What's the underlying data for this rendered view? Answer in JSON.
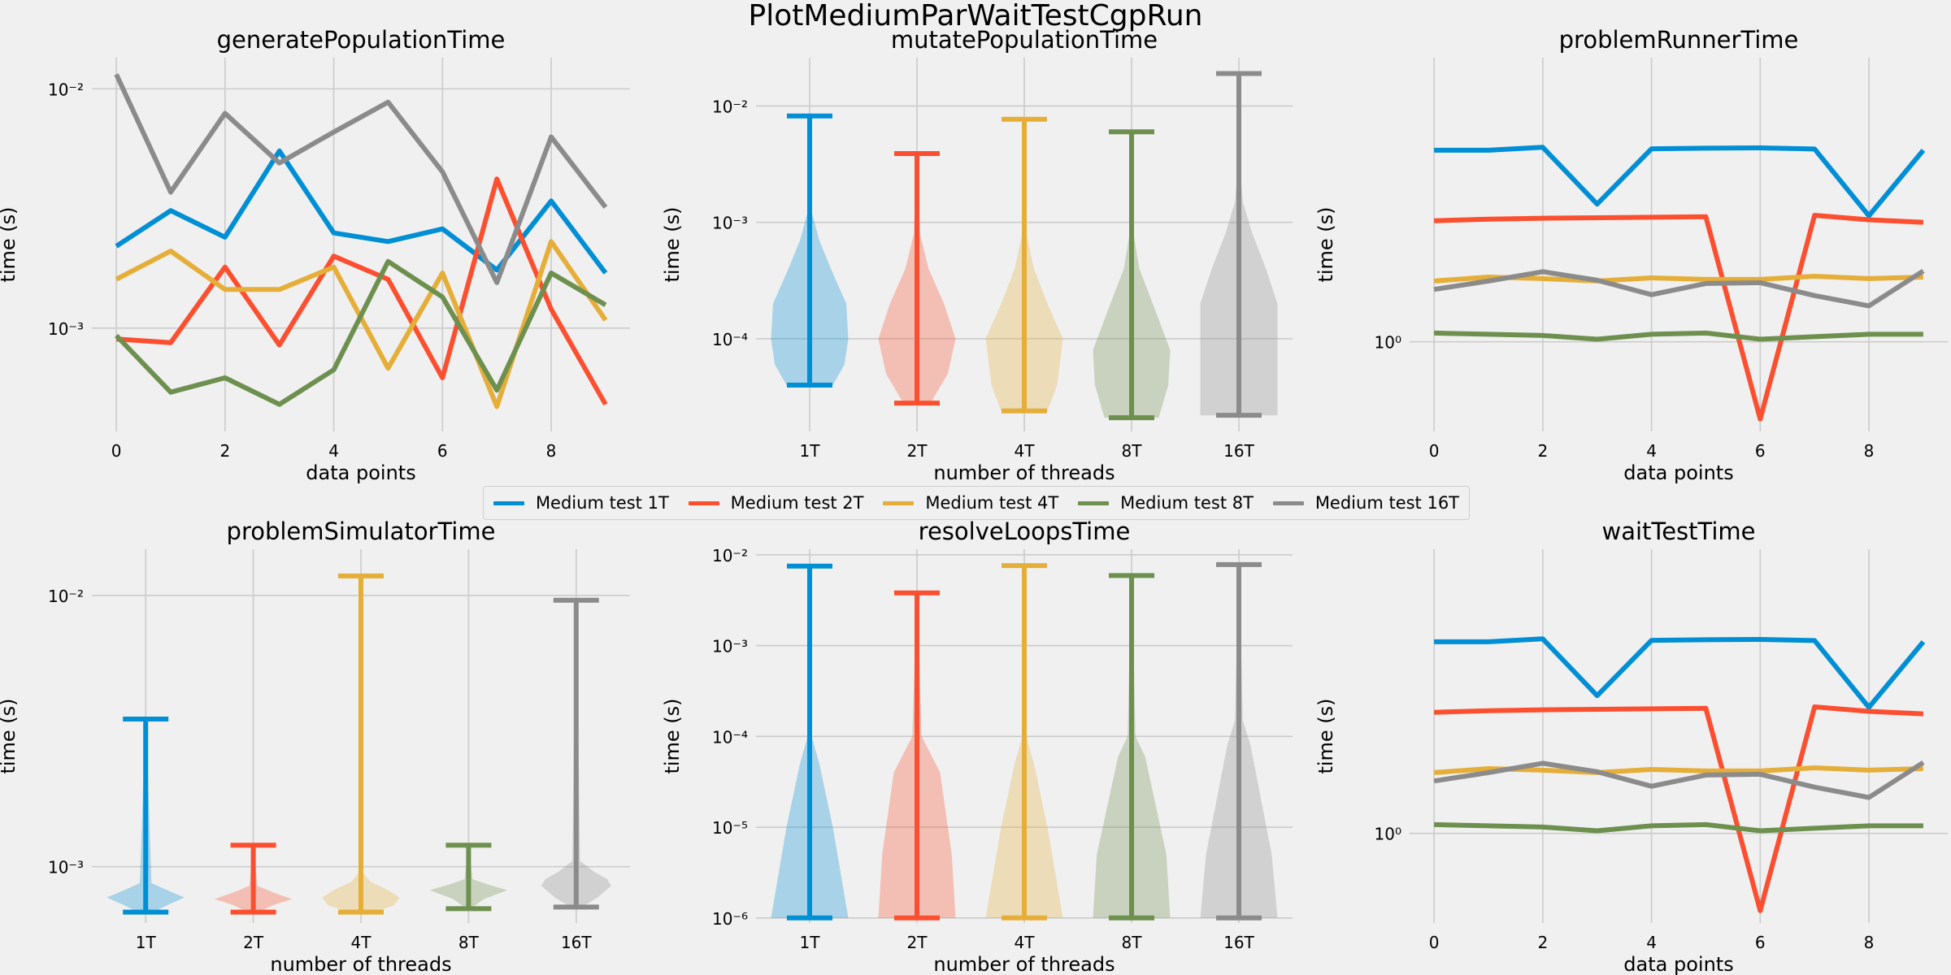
{
  "figure": {
    "suptitle": "PlotMediumParWaitTestCgpRun"
  },
  "series_names": [
    "Medium test 1T",
    "Medium test 2T",
    "Medium test 4T",
    "Medium test 8T",
    "Medium test 16T"
  ],
  "series_colors": [
    "#008fd5",
    "#fc4f30",
    "#e5ae38",
    "#6d904f",
    "#8b8b8b"
  ],
  "chart_data": [
    {
      "id": "generatePopulationTime",
      "type": "line",
      "title": "generatePopulationTime",
      "xlabel": "data points",
      "ylabel": "time (s)",
      "x": [
        0,
        1,
        2,
        3,
        4,
        5,
        6,
        7,
        8,
        9
      ],
      "xticks": [
        0,
        2,
        4,
        6,
        8
      ],
      "xticklabels": [
        "0",
        "2",
        "4",
        "6",
        "8"
      ],
      "xlim": [
        -0.45,
        9.45
      ],
      "yscale": "log",
      "ylim": [
        0.00037,
        0.0135
      ],
      "yticks": [
        0.001,
        0.01
      ],
      "yticklabels": [
        "10⁻³",
        "10⁻²"
      ],
      "series": [
        {
          "name": "Medium test 1T",
          "values": [
            0.0022,
            0.0031,
            0.0024,
            0.0055,
            0.0025,
            0.0023,
            0.0026,
            0.00175,
            0.0034,
            0.0017
          ]
        },
        {
          "name": "Medium test 2T",
          "values": [
            0.0009,
            0.00087,
            0.0018,
            0.00085,
            0.002,
            0.0016,
            0.00062,
            0.0042,
            0.0012,
            0.00048
          ]
        },
        {
          "name": "Medium test 4T",
          "values": [
            0.0016,
            0.0021,
            0.00145,
            0.00145,
            0.0018,
            0.00068,
            0.0017,
            0.00047,
            0.0023,
            0.00108
          ]
        },
        {
          "name": "Medium test 8T",
          "values": [
            0.00093,
            0.00054,
            0.00062,
            0.00048,
            0.00067,
            0.0019,
            0.00135,
            0.00055,
            0.0017,
            0.00125
          ]
        },
        {
          "name": "Medium test 16T",
          "values": [
            0.0115,
            0.0037,
            0.0079,
            0.0049,
            0.0066,
            0.0088,
            0.0045,
            0.00155,
            0.0063,
            0.0032
          ]
        }
      ]
    },
    {
      "id": "mutatePopulationTime",
      "type": "violin",
      "title": "mutatePopulationTime",
      "xlabel": "number of threads",
      "ylabel": "time (s)",
      "categories": [
        "1T",
        "2T",
        "4T",
        "8T",
        "16T"
      ],
      "yscale": "log",
      "ylim": [
        1.6e-05,
        0.026
      ],
      "yticks": [
        0.0001,
        0.001,
        0.01
      ],
      "yticklabels": [
        "10⁻⁴",
        "10⁻³",
        "10⁻²"
      ],
      "series": [
        {
          "name": "Medium test 1T",
          "min": 4e-05,
          "max": 0.0082,
          "profile": [
            [
              4e-05,
              0.6
            ],
            [
              6e-05,
              0.9
            ],
            [
              0.0001,
              1.0
            ],
            [
              0.0002,
              0.95
            ],
            [
              0.0004,
              0.55
            ],
            [
              0.0007,
              0.25
            ],
            [
              0.0012,
              0.06
            ],
            [
              0.0082,
              0.01
            ]
          ]
        },
        {
          "name": "Medium test 2T",
          "min": 2.8e-05,
          "max": 0.0039,
          "profile": [
            [
              2.8e-05,
              0.35
            ],
            [
              5e-05,
              0.8
            ],
            [
              0.0001,
              1.0
            ],
            [
              0.0002,
              0.7
            ],
            [
              0.0004,
              0.3
            ],
            [
              0.0008,
              0.08
            ],
            [
              0.0039,
              0.01
            ]
          ]
        },
        {
          "name": "Medium test 4T",
          "min": 2.4e-05,
          "max": 0.0077,
          "profile": [
            [
              2.4e-05,
              0.6
            ],
            [
              4e-05,
              0.85
            ],
            [
              0.0001,
              1.0
            ],
            [
              0.0002,
              0.6
            ],
            [
              0.0004,
              0.25
            ],
            [
              0.0008,
              0.05
            ],
            [
              0.0077,
              0.01
            ]
          ]
        },
        {
          "name": "Medium test 8T",
          "min": 2.1e-05,
          "max": 0.006,
          "profile": [
            [
              2.1e-05,
              0.7
            ],
            [
              4e-05,
              0.95
            ],
            [
              8e-05,
              1.0
            ],
            [
              0.0002,
              0.55
            ],
            [
              0.0004,
              0.2
            ],
            [
              0.0008,
              0.05
            ],
            [
              0.006,
              0.01
            ]
          ]
        },
        {
          "name": "Medium test 16T",
          "min": 2.2e-05,
          "max": 0.019,
          "profile": [
            [
              2.2e-05,
              1.0
            ],
            [
              0.0002,
              1.0
            ],
            [
              0.0004,
              0.7
            ],
            [
              0.0008,
              0.35
            ],
            [
              0.0015,
              0.1
            ],
            [
              0.003,
              0.03
            ],
            [
              0.019,
              0.01
            ]
          ]
        }
      ]
    },
    {
      "id": "problemRunnerTime",
      "type": "line",
      "title": "problemRunnerTime",
      "xlabel": "data points",
      "ylabel": "time (s)",
      "x": [
        0,
        1,
        2,
        3,
        4,
        5,
        6,
        7,
        8,
        9
      ],
      "xticks": [
        0,
        2,
        4,
        6,
        8
      ],
      "xticklabels": [
        "0",
        "2",
        "4",
        "6",
        "8"
      ],
      "xlim": [
        -0.45,
        9.45
      ],
      "yscale": "log",
      "ylim": [
        0.5,
        9.0
      ],
      "yticks": [
        1
      ],
      "yticklabels": [
        "10⁰"
      ],
      "series": [
        {
          "name": "Medium test 1T",
          "values": [
            4.4,
            4.4,
            4.5,
            2.9,
            4.45,
            4.47,
            4.48,
            4.44,
            2.65,
            4.4
          ]
        },
        {
          "name": "Medium test 2T",
          "values": [
            2.55,
            2.58,
            2.6,
            2.61,
            2.62,
            2.63,
            0.55,
            2.66,
            2.57,
            2.52
          ]
        },
        {
          "name": "Medium test 4T",
          "values": [
            1.6,
            1.65,
            1.63,
            1.6,
            1.64,
            1.62,
            1.62,
            1.66,
            1.63,
            1.65
          ]
        },
        {
          "name": "Medium test 8T",
          "values": [
            1.07,
            1.06,
            1.05,
            1.02,
            1.06,
            1.07,
            1.02,
            1.04,
            1.06,
            1.06
          ]
        },
        {
          "name": "Medium test 16T",
          "values": [
            1.5,
            1.6,
            1.72,
            1.61,
            1.44,
            1.57,
            1.58,
            1.43,
            1.32,
            1.73
          ]
        }
      ]
    },
    {
      "id": "problemSimulatorTime",
      "type": "violin",
      "title": "problemSimulatorTime",
      "xlabel": "number of threads",
      "ylabel": "time (s)",
      "categories": [
        "1T",
        "2T",
        "4T",
        "8T",
        "16T"
      ],
      "yscale": "log",
      "ylim": [
        0.00062,
        0.0148
      ],
      "yticks": [
        0.001,
        0.01
      ],
      "yticklabels": [
        "10⁻³",
        "10⁻²"
      ],
      "series": [
        {
          "name": "Medium test 1T",
          "min": 0.00068,
          "max": 0.0035,
          "profile": [
            [
              0.00068,
              0.2
            ],
            [
              0.00072,
              0.55
            ],
            [
              0.00077,
              1.0
            ],
            [
              0.00082,
              0.55
            ],
            [
              0.00087,
              0.15
            ],
            [
              0.0035,
              0.01
            ]
          ]
        },
        {
          "name": "Medium test 2T",
          "min": 0.00068,
          "max": 0.0012,
          "profile": [
            [
              0.00068,
              0.15
            ],
            [
              0.00072,
              0.5
            ],
            [
              0.00076,
              1.0
            ],
            [
              0.0008,
              0.55
            ],
            [
              0.00085,
              0.1
            ],
            [
              0.0012,
              0.01
            ]
          ]
        },
        {
          "name": "Medium test 4T",
          "min": 0.00068,
          "max": 0.0118,
          "profile": [
            [
              0.00068,
              0.35
            ],
            [
              0.00072,
              0.85
            ],
            [
              0.00077,
              1.0
            ],
            [
              0.00082,
              0.7
            ],
            [
              0.00088,
              0.25
            ],
            [
              0.00095,
              0.05
            ],
            [
              0.0118,
              0.01
            ]
          ]
        },
        {
          "name": "Medium test 8T",
          "min": 0.0007,
          "max": 0.0012,
          "profile": [
            [
              0.0007,
              0.05
            ],
            [
              0.00076,
              0.4
            ],
            [
              0.00082,
              1.0
            ],
            [
              0.00086,
              0.5
            ],
            [
              0.0009,
              0.1
            ],
            [
              0.0012,
              0.01
            ]
          ]
        },
        {
          "name": "Medium test 16T",
          "min": 0.00071,
          "max": 0.0096,
          "profile": [
            [
              0.00071,
              0.15
            ],
            [
              0.00077,
              0.55
            ],
            [
              0.00085,
              0.9
            ],
            [
              0.0009,
              0.8
            ],
            [
              0.00096,
              0.45
            ],
            [
              0.00105,
              0.1
            ],
            [
              0.0096,
              0.01
            ]
          ]
        }
      ]
    },
    {
      "id": "resolveLoopsTime",
      "type": "violin",
      "title": "resolveLoopsTime",
      "xlabel": "number of threads",
      "ylabel": "time (s)",
      "categories": [
        "1T",
        "2T",
        "4T",
        "8T",
        "16T"
      ],
      "yscale": "log",
      "ylim": [
        8.8e-07,
        0.0115
      ],
      "yticks": [
        1e-06,
        1e-05,
        0.0001,
        0.001,
        0.01
      ],
      "yticklabels": [
        "10⁻⁶",
        "10⁻⁵",
        "10⁻⁴",
        "10⁻³",
        "10⁻²"
      ],
      "series": [
        {
          "name": "Medium test 1T",
          "min": 1e-06,
          "max": 0.0075,
          "profile": [
            [
              1e-06,
              1.0
            ],
            [
              1e-05,
              0.6
            ],
            [
              5e-05,
              0.25
            ],
            [
              0.0001,
              0.05
            ],
            [
              0.0075,
              0.01
            ]
          ]
        },
        {
          "name": "Medium test 2T",
          "min": 1e-06,
          "max": 0.0038,
          "profile": [
            [
              1e-06,
              1.0
            ],
            [
              5e-06,
              0.9
            ],
            [
              4e-05,
              0.6
            ],
            [
              0.0001,
              0.12
            ],
            [
              0.0038,
              0.01
            ]
          ]
        },
        {
          "name": "Medium test 4T",
          "min": 1e-06,
          "max": 0.0076,
          "profile": [
            [
              1e-06,
              1.0
            ],
            [
              1e-05,
              0.6
            ],
            [
              5e-05,
              0.25
            ],
            [
              0.0001,
              0.05
            ],
            [
              0.0076,
              0.01
            ]
          ]
        },
        {
          "name": "Medium test 8T",
          "min": 1e-06,
          "max": 0.0059,
          "profile": [
            [
              1e-06,
              1.0
            ],
            [
              5e-06,
              0.9
            ],
            [
              6e-05,
              0.35
            ],
            [
              0.0001,
              0.1
            ],
            [
              0.0059,
              0.01
            ]
          ]
        },
        {
          "name": "Medium test 16T",
          "min": 1e-06,
          "max": 0.0078,
          "profile": [
            [
              1e-06,
              1.0
            ],
            [
              5e-06,
              0.85
            ],
            [
              8e-05,
              0.3
            ],
            [
              0.00015,
              0.1
            ],
            [
              0.0078,
              0.01
            ]
          ]
        }
      ]
    },
    {
      "id": "waitTestTime",
      "type": "line",
      "title": "waitTestTime",
      "xlabel": "data points",
      "ylabel": "time (s)",
      "x": [
        0,
        1,
        2,
        3,
        4,
        5,
        6,
        7,
        8,
        9
      ],
      "xticks": [
        0,
        2,
        4,
        6,
        8
      ],
      "xticklabels": [
        "0",
        "2",
        "4",
        "6",
        "8"
      ],
      "xlim": [
        -0.45,
        9.45
      ],
      "yscale": "log",
      "ylim": [
        0.5,
        9.0
      ],
      "yticks": [
        1
      ],
      "yticklabels": [
        "10⁰"
      ],
      "series": [
        {
          "name": "Medium test 1T",
          "values": [
            4.4,
            4.4,
            4.5,
            2.9,
            4.45,
            4.47,
            4.48,
            4.44,
            2.65,
            4.4
          ]
        },
        {
          "name": "Medium test 2T",
          "values": [
            2.55,
            2.58,
            2.6,
            2.61,
            2.62,
            2.63,
            0.55,
            2.66,
            2.57,
            2.52
          ]
        },
        {
          "name": "Medium test 4T",
          "values": [
            1.6,
            1.65,
            1.63,
            1.6,
            1.64,
            1.62,
            1.62,
            1.66,
            1.63,
            1.65
          ]
        },
        {
          "name": "Medium test 8T",
          "values": [
            1.07,
            1.06,
            1.05,
            1.02,
            1.06,
            1.07,
            1.02,
            1.04,
            1.06,
            1.06
          ]
        },
        {
          "name": "Medium test 16T",
          "values": [
            1.5,
            1.6,
            1.72,
            1.61,
            1.44,
            1.57,
            1.58,
            1.43,
            1.32,
            1.73
          ]
        }
      ]
    }
  ]
}
